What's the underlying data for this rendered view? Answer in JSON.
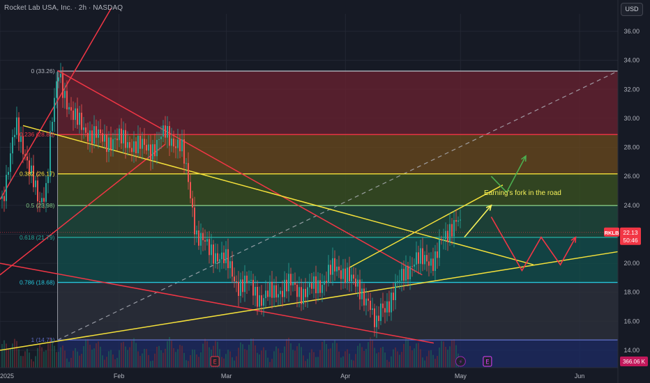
{
  "header": {
    "title": "Rocket Lab USA, Inc. · 2h · NASDAQ",
    "currency": "USD"
  },
  "annotation": {
    "text": "Earning's fork in the road"
  },
  "price_badge": {
    "symbol": "RKLB",
    "price": "22.13",
    "timer": "50:46",
    "color": "#f23645"
  },
  "volume_badge": {
    "text": "366.06 K",
    "color": "#c2185b"
  },
  "event_markers": [
    {
      "label": "E",
      "date": "2025-02-26",
      "color": "#f23645"
    },
    {
      "label": "⚡",
      "date": "2025-05-01",
      "color": "#9c27b0"
    },
    {
      "label": "E",
      "date": "2025-05-08",
      "color": "#e040fb"
    }
  ],
  "chart_data": {
    "type": "candlestick",
    "x_axis": {
      "type": "date",
      "tick_labels": [
        "2025",
        "Feb",
        "Mar",
        "Apr",
        "May",
        "Jun"
      ],
      "tick_dates": [
        "2025-01-01",
        "2025-02-01",
        "2025-03-01",
        "2025-04-01",
        "2025-05-01",
        "2025-06-01"
      ],
      "range": [
        "2025-01-01",
        "2025-06-11"
      ]
    },
    "y_axis": {
      "tick_labels": [
        "14.00",
        "16.00",
        "18.00",
        "20.00",
        "22.00",
        "24.00",
        "26.00",
        "28.00",
        "30.00",
        "32.00",
        "34.00",
        "36.00"
      ],
      "tick_values": [
        14,
        16,
        18,
        20,
        22,
        24,
        26,
        28,
        30,
        32,
        34,
        36
      ],
      "range": [
        12.8,
        37.2
      ]
    },
    "fibonacci": {
      "start_date": "2025-01-16",
      "end_date": "2025-06-11",
      "levels": [
        {
          "label": "0 (33.26)",
          "price": 33.26,
          "color": "#b2b5be",
          "fill": "#6b2230"
        },
        {
          "label": "0.236 (28.88)",
          "price": 28.88,
          "color": "#f23645",
          "fill": "#6b4a1c"
        },
        {
          "label": "0.382 (26.17)",
          "price": 26.17,
          "color": "#f5e13a",
          "fill": "#3b5320"
        },
        {
          "label": "0.5 (23.98)",
          "price": 23.98,
          "color": "#81c784",
          "fill": "#1f4c3c"
        },
        {
          "label": "0.618 (21.79)",
          "price": 21.79,
          "color": "#26a69a",
          "fill": "#11504e"
        },
        {
          "label": "0.786 (18.68)",
          "price": 18.68,
          "color": "#26c6da",
          "fill": "#2d323c"
        },
        {
          "label": "1 (14.71)",
          "price": 14.71,
          "color": "#5c6bc0",
          "fill": "#1e2b64"
        }
      ]
    },
    "trend_lines": [
      {
        "from": [
          "2025-01-01",
          24.4
        ],
        "to": [
          "2025-01-30",
          37.6
        ],
        "color": "#f23645"
      },
      {
        "from": [
          "2025-01-01",
          19.2
        ],
        "to": [
          "2025-02-13",
          28.2
        ],
        "color": "#f23645"
      },
      {
        "from": [
          "2025-01-16",
          33.3
        ],
        "to": [
          "2025-04-21",
          19.2
        ],
        "color": "#f23645"
      },
      {
        "from": [
          "2025-01-01",
          20.0
        ],
        "to": [
          "2025-04-24",
          14.5
        ],
        "color": "#f23645"
      },
      {
        "from": [
          "2025-01-07",
          29.5
        ],
        "to": [
          "2025-05-20",
          19.9
        ],
        "color": "#f5e13a"
      },
      {
        "from": [
          "2025-01-01",
          14.0
        ],
        "to": [
          "2025-06-11",
          20.8
        ],
        "color": "#f5e13a"
      },
      {
        "from": [
          "2025-04-02",
          19.7
        ],
        "to": [
          "2025-05-12",
          25.4
        ],
        "color": "#f5e13a"
      }
    ],
    "midline": {
      "from": [
        "2025-01-16",
        14.71
      ],
      "to": [
        "2025-06-11",
        33.26
      ],
      "color": "#b2b5be"
    },
    "projections": [
      {
        "color": "#f5f15a",
        "points": [
          [
            "2025-05-02",
            21.8
          ],
          [
            "2025-05-09",
            24.0
          ]
        ]
      },
      {
        "color": "#4caf50",
        "points": [
          [
            "2025-05-09",
            26.0
          ],
          [
            "2025-05-13",
            24.9
          ],
          [
            "2025-05-18",
            27.4
          ]
        ]
      },
      {
        "color": "#f23645",
        "points": [
          [
            "2025-05-09",
            23.2
          ],
          [
            "2025-05-17",
            19.5
          ],
          [
            "2025-05-22",
            21.8
          ],
          [
            "2025-05-27",
            19.9
          ],
          [
            "2025-05-31",
            21.8
          ]
        ]
      }
    ],
    "price_path": [
      [
        "2025-01-01",
        24.0
      ],
      [
        "2025-01-03",
        26.5
      ],
      [
        "2025-01-05",
        29.5
      ],
      [
        "2025-01-07",
        28.0
      ],
      [
        "2025-01-09",
        26.0
      ],
      [
        "2025-01-11",
        24.0
      ],
      [
        "2025-01-13",
        25.5
      ],
      [
        "2025-01-14",
        29.0
      ],
      [
        "2025-01-16",
        33.0
      ],
      [
        "2025-01-18",
        31.5
      ],
      [
        "2025-01-20",
        30.0
      ],
      [
        "2025-01-24",
        29.0
      ],
      [
        "2025-01-28",
        28.5
      ],
      [
        "2025-02-02",
        28.5
      ],
      [
        "2025-02-06",
        28.0
      ],
      [
        "2025-02-10",
        28.0
      ],
      [
        "2025-02-13",
        29.0
      ],
      [
        "2025-02-17",
        28.0
      ],
      [
        "2025-02-19",
        25.5
      ],
      [
        "2025-02-21",
        22.0
      ],
      [
        "2025-02-24",
        21.0
      ],
      [
        "2025-02-27",
        20.5
      ],
      [
        "2025-03-01",
        20.0
      ],
      [
        "2025-03-04",
        18.5
      ],
      [
        "2025-03-07",
        18.5
      ],
      [
        "2025-03-10",
        17.5
      ],
      [
        "2025-03-13",
        18.0
      ],
      [
        "2025-03-17",
        18.5
      ],
      [
        "2025-03-21",
        18.0
      ],
      [
        "2025-03-25",
        18.5
      ],
      [
        "2025-03-28",
        19.5
      ],
      [
        "2025-04-01",
        19.5
      ],
      [
        "2025-04-03",
        18.5
      ],
      [
        "2025-04-05",
        18.0
      ],
      [
        "2025-04-07",
        17.5
      ],
      [
        "2025-04-08",
        16.0
      ],
      [
        "2025-04-09",
        15.5
      ],
      [
        "2025-04-10",
        17.0
      ],
      [
        "2025-04-13",
        17.5
      ],
      [
        "2025-04-16",
        19.5
      ],
      [
        "2025-04-19",
        20.0
      ],
      [
        "2025-04-22",
        20.5
      ],
      [
        "2025-04-24",
        20.0
      ],
      [
        "2025-04-26",
        21.5
      ],
      [
        "2025-04-28",
        22.5
      ],
      [
        "2025-04-30",
        23.0
      ],
      [
        "2025-05-01",
        22.1
      ]
    ]
  }
}
